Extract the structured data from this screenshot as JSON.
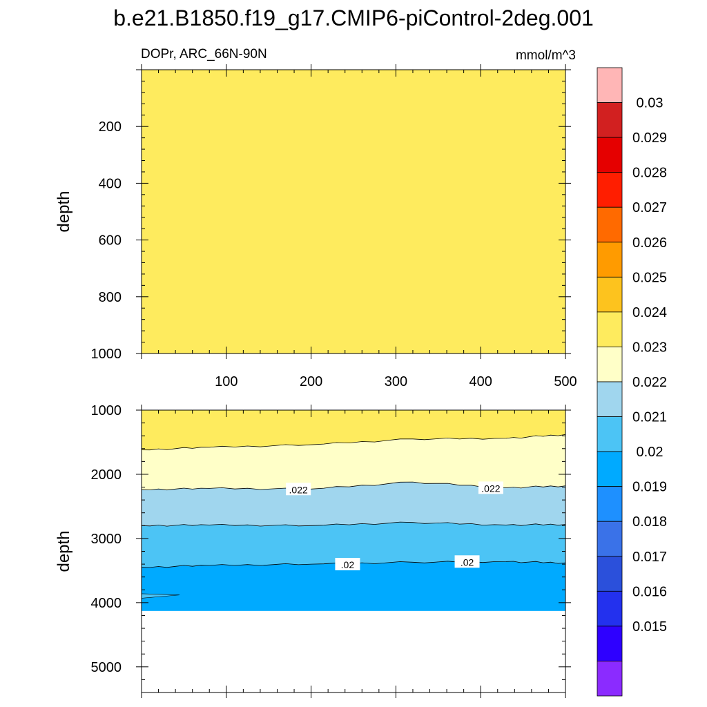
{
  "chart_data": {
    "type": "contour",
    "title": "b.e21.B1850.f19_g17.CMIP6-piControl-2deg.001",
    "variable_label": "DOPr, ARC_66N-90N",
    "units": "mmol/m^3",
    "ylabel": "depth",
    "xlim": [
      0,
      500
    ],
    "x_ticks": [
      "100",
      "200",
      "300",
      "400",
      "500"
    ],
    "colors": {
      "background": "#ffffff",
      "no_data": "#ffffff",
      "line": "#000000"
    },
    "colorbar": {
      "levels": [
        "0.015",
        "0.016",
        "0.017",
        "0.018",
        "0.019",
        "0.02",
        "0.021",
        "0.022",
        "0.023",
        "0.024",
        "0.025",
        "0.026",
        "0.027",
        "0.028",
        "0.029",
        "0.03"
      ],
      "colors": [
        "#8B2BFF",
        "#2E00FF",
        "#2331EE",
        "#2B50DB",
        "#3A72E8",
        "#1E90FF",
        "#00AAFF",
        "#4CC4F5",
        "#A0D6EE",
        "#FFFFC8",
        "#FEEB5E",
        "#FDC31E",
        "#FF9B00",
        "#FF6A00",
        "#FF1E00",
        "#E50000",
        "#D22020",
        "#FFB6B6"
      ]
    },
    "panels": [
      {
        "name": "upper",
        "ylim": [
          0,
          1000
        ],
        "y_ticks": [
          "200",
          "400",
          "600",
          "800",
          "1000"
        ],
        "regions": [
          {
            "fill": "#FEEB5E",
            "top": 0,
            "bottom": 1000
          }
        ],
        "contour_labels": []
      },
      {
        "name": "lower",
        "ylim": [
          1000,
          5400
        ],
        "y_ticks": [
          "1000",
          "2000",
          "3000",
          "4000",
          "5000"
        ],
        "bottom_of_data": 4130,
        "boundaries": [
          {
            "level": "0.023",
            "x": [
              0,
              80,
              200,
              320,
              430,
              500
            ],
            "depth": [
              1620,
              1580,
              1540,
              1450,
              1440,
              1380
            ]
          },
          {
            "level": "0.022",
            "x": [
              0,
              80,
              200,
              320,
              430,
              500
            ],
            "depth": [
              2240,
              2220,
              2230,
              2120,
              2210,
              2180
            ]
          },
          {
            "level": "0.021",
            "x": [
              0,
              80,
              200,
              320,
              430,
              500
            ],
            "depth": [
              2800,
              2790,
              2800,
              2750,
              2790,
              2780
            ]
          },
          {
            "level": "0.02",
            "x": [
              0,
              80,
              200,
              320,
              430,
              500
            ],
            "depth": [
              3450,
              3420,
              3400,
              3370,
              3360,
              3380
            ]
          }
        ],
        "regions": [
          {
            "fill": "#FEEB5E",
            "between": [
              "top",
              "0.023"
            ]
          },
          {
            "fill": "#FFFFC8",
            "between": [
              "0.023",
              "0.022"
            ]
          },
          {
            "fill": "#A0D6EE",
            "between": [
              "0.022",
              "0.021"
            ]
          },
          {
            "fill": "#4CC4F5",
            "between": [
              "0.021",
              "0.02"
            ]
          },
          {
            "fill": "#00AAFF",
            "between": [
              "0.02",
              "bottom"
            ]
          }
        ],
        "contour_labels": [
          {
            "text": ".022",
            "x": 185,
            "depth": 2240
          },
          {
            "text": ".022",
            "x": 412,
            "depth": 2220
          },
          {
            "text": ".02",
            "x": 243,
            "depth": 3410
          },
          {
            "text": ".02",
            "x": 384,
            "depth": 3370
          }
        ]
      }
    ]
  }
}
